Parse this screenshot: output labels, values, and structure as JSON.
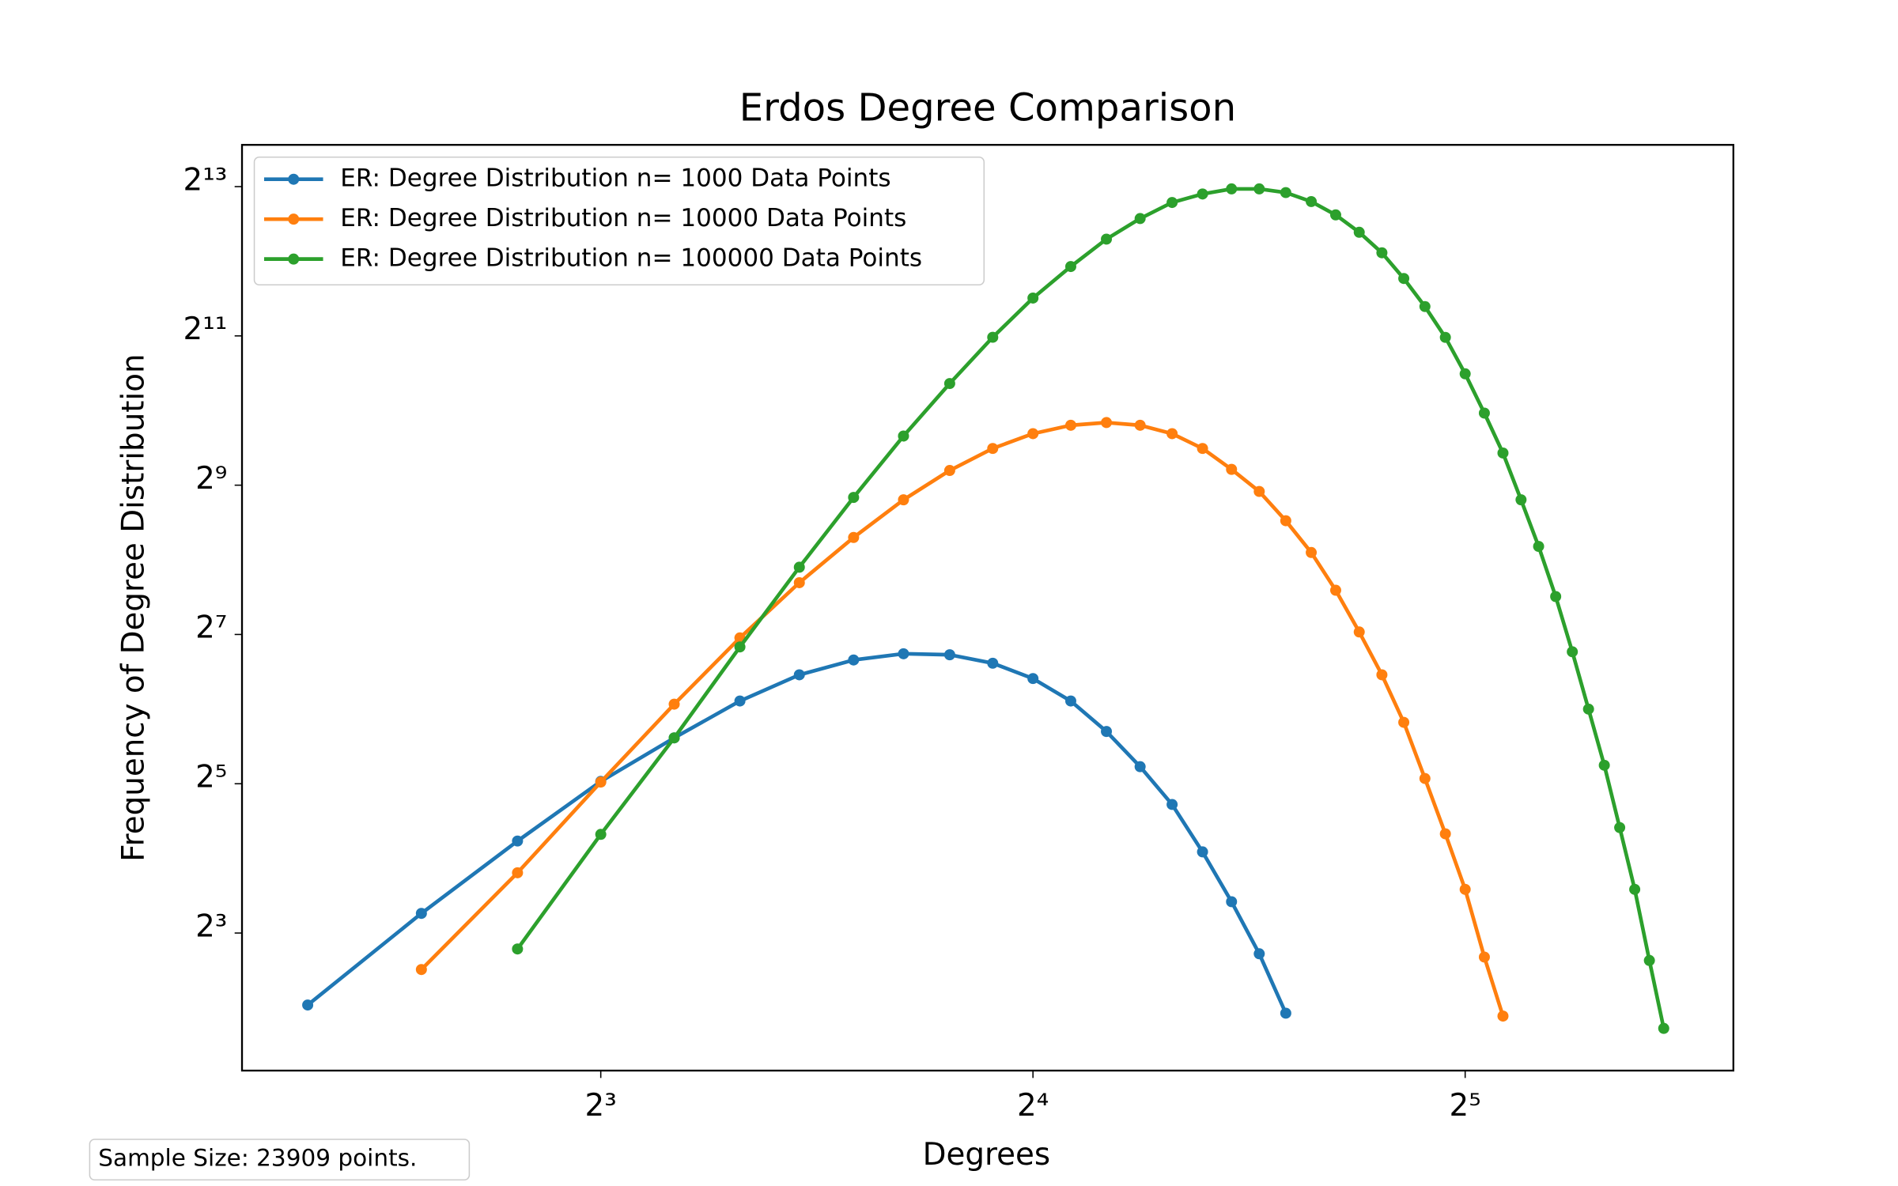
{
  "chart_data": {
    "type": "line",
    "title": "Erdos Degree Comparison",
    "x_label": "Degrees",
    "y_label": "Frequency of Degree Distribution",
    "x_log_base": 2,
    "y_log_base": 2,
    "xlim": [
      4.5,
      49.2
    ],
    "ylim": [
      2.23,
      12070
    ],
    "xticks": [
      {
        "value": 8,
        "label": "2³"
      },
      {
        "value": 16,
        "label": "2⁴"
      },
      {
        "value": 32,
        "label": "2⁵"
      }
    ],
    "yticks": [
      {
        "value": 8,
        "label": "2³"
      },
      {
        "value": 32,
        "label": "2⁵"
      },
      {
        "value": 128,
        "label": "2⁷"
      },
      {
        "value": 512,
        "label": "2⁹"
      },
      {
        "value": 2048,
        "label": "2¹¹"
      },
      {
        "value": 8192,
        "label": "2¹³"
      }
    ],
    "legend": "upper left",
    "annotation": "Sample Size: 23909 points.",
    "series": [
      {
        "name": "ER: Degree Distribution n= 1000 Data Points",
        "color": "#1f77b4",
        "x": [
          5,
          6,
          7,
          8,
          9,
          10,
          11,
          12,
          13,
          14,
          15,
          16,
          17,
          18,
          19,
          20,
          21,
          22,
          23,
          24
        ],
        "values": [
          4.1,
          9.6,
          18.8,
          32.7,
          49,
          69,
          88,
          101,
          107,
          106,
          98,
          85,
          69,
          52,
          37.5,
          26.4,
          17,
          10.7,
          6.6,
          3.8
        ]
      },
      {
        "name": "ER: Degree Distribution n= 10000 Data Points",
        "color": "#ff7f0e",
        "x": [
          6,
          7,
          8,
          9,
          10,
          11,
          12,
          13,
          14,
          15,
          16,
          17,
          18,
          19,
          20,
          21,
          22,
          23,
          24,
          25,
          26,
          27,
          28,
          29,
          30,
          31,
          32,
          33,
          34
        ],
        "values": [
          5.7,
          14,
          32.5,
          67,
          124,
          207,
          315,
          447,
          587,
          720,
          826,
          893,
          916,
          893,
          826,
          720,
          593,
          483,
          368,
          274,
          193,
          131,
          88,
          56.6,
          33.6,
          20.1,
          12,
          6.4,
          3.7
        ]
      },
      {
        "name": "ER: Degree Distribution n= 100000 Data Points",
        "color": "#2ca02c",
        "x": [
          7,
          8,
          9,
          10,
          11,
          12,
          13,
          14,
          15,
          16,
          17,
          18,
          19,
          20,
          21,
          22,
          23,
          24,
          25,
          26,
          27,
          28,
          29,
          30,
          31,
          32,
          33,
          34,
          35,
          36,
          37,
          38,
          39,
          40,
          41,
          42,
          43,
          44
        ],
        "values": [
          6.9,
          20,
          49,
          114,
          239,
          457,
          808,
          1316,
          2022,
          2910,
          3900,
          5030,
          6090,
          7070,
          7650,
          8020,
          8020,
          7750,
          7130,
          6300,
          5360,
          4430,
          3490,
          2690,
          2020,
          1440,
          1000,
          690,
          447,
          290,
          182,
          109,
          64,
          38,
          21.3,
          12,
          6.2,
          3.3
        ]
      }
    ]
  }
}
